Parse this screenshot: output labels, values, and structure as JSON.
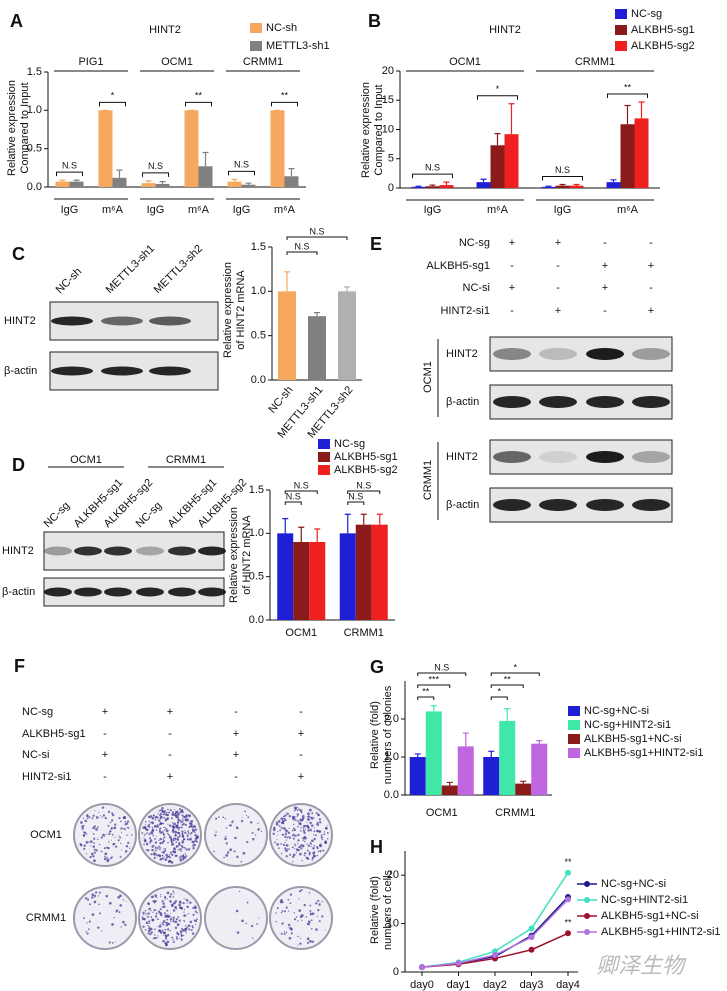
{
  "chart_data": [
    {
      "type": "bar",
      "panel": "A",
      "title": "HINT2",
      "y_label": [
        "Relative expression",
        "Compared to Input"
      ],
      "groups": [
        "PIG1",
        "OCM1",
        "CRMM1"
      ],
      "categories": [
        "IgG",
        "m⁶A",
        "IgG",
        "m⁶A",
        "IgG",
        "m⁶A"
      ],
      "series": [
        {
          "name": "NC-sh",
          "color": "#f5a85e",
          "values": [
            0.07,
            1.0,
            0.05,
            1.0,
            0.07,
            1.0
          ],
          "errors": [
            0.02,
            0,
            0.03,
            0,
            0.03,
            0
          ]
        },
        {
          "name": "METTL3-sh1",
          "color": "#808080",
          "values": [
            0.07,
            0.12,
            0.04,
            0.27,
            0.03,
            0.14
          ],
          "errors": [
            0.02,
            0.1,
            0.03,
            0.18,
            0.02,
            0.1
          ]
        }
      ],
      "ylim": [
        0,
        1.5
      ],
      "yticks": [
        {
          "value": 0,
          "label": "0.0"
        },
        0.5,
        {
          "value": 1,
          "label": "1.0"
        },
        1.5
      ],
      "annotations": [
        "N.S",
        "*",
        "N.S",
        "**",
        "N.S",
        "**"
      ]
    },
    {
      "type": "bar",
      "panel": "B",
      "title": "HINT2",
      "y_label": [
        "Relative expression",
        "Compared to Input"
      ],
      "groups": [
        "OCM1",
        "CRMM1"
      ],
      "categories": [
        "IgG",
        "m⁶A",
        "IgG",
        "m⁶A"
      ],
      "series": [
        {
          "name": "NC-sg",
          "color": "#1f1fd6",
          "values": [
            0.2,
            1.0,
            0.2,
            1.0
          ],
          "errors": [
            0.1,
            0.5,
            0.1,
            0.4
          ]
        },
        {
          "name": "ALKBH5-sg1",
          "color": "#8b1a1a",
          "values": [
            0.3,
            7.3,
            0.4,
            10.9
          ],
          "errors": [
            0.2,
            2.0,
            0.2,
            3.2
          ]
        },
        {
          "name": "ALKBH5-sg2",
          "color": "#ee2020",
          "values": [
            0.5,
            9.2,
            0.4,
            11.9
          ],
          "errors": [
            0.5,
            5.2,
            0.2,
            2.8
          ]
        }
      ],
      "ylim": [
        0,
        20
      ],
      "yticks": [
        0,
        5,
        10,
        15,
        20
      ],
      "annotations": [
        "N.S",
        "*",
        "N.S",
        "**"
      ]
    },
    {
      "type": "bar",
      "y_label": [
        "Relative expression",
        "of HINT2 mRNA"
      ],
      "categories": [
        "NC-sh",
        "METTL3-sh1",
        "METTL3-sh2"
      ],
      "values": [
        1.0,
        0.72,
        1.0
      ],
      "errors": [
        0.22,
        0.04,
        0.05
      ],
      "colors": [
        "#f5a85e",
        "#808080",
        "#b0b0b0"
      ],
      "ylim": [
        0,
        1.5
      ],
      "yticks": [
        {
          "value": 0,
          "label": "0.0"
        },
        0.5,
        {
          "value": 1,
          "label": "1.0"
        },
        1.5
      ],
      "annotations": [
        "N.S",
        "N.S"
      ]
    },
    {
      "type": "bar",
      "y_label": [
        "Relative expression",
        "of HINT2 mRNA"
      ],
      "categories": [
        "OCM1",
        "CRMM1"
      ],
      "series": [
        {
          "name": "NC-sg",
          "color": "#1f1fd6",
          "values": [
            1.0,
            1.0
          ],
          "errors": [
            0.17,
            0.22
          ]
        },
        {
          "name": "ALKBH5-sg1",
          "color": "#8b1a1a",
          "values": [
            0.9,
            1.1
          ],
          "errors": [
            0.17,
            0.12
          ]
        },
        {
          "name": "ALKBH5-sg2",
          "color": "#ee2020",
          "values": [
            0.9,
            1.1
          ],
          "errors": [
            0.15,
            0.12
          ]
        }
      ],
      "ylim": [
        0,
        1.5
      ],
      "yticks": [
        {
          "value": 0,
          "label": "0.0"
        },
        0.5,
        {
          "value": 1,
          "label": "1.0"
        },
        1.5
      ],
      "annotations": [
        "N.S",
        "N.S",
        "N.S",
        "N.S"
      ]
    },
    {
      "type": "bar",
      "panel": "G",
      "y_label": [
        "Relative (fold)",
        "numbers of colonies"
      ],
      "categories": [
        "OCM1",
        "CRMM1"
      ],
      "series": [
        {
          "name": "NC-sg+NC-si",
          "color": "#1f1fd6",
          "values": [
            1.0,
            1.0
          ],
          "errors": [
            0.08,
            0.15
          ]
        },
        {
          "name": "NC-sg+HINT2-si1",
          "color": "#40e8a8",
          "values": [
            2.2,
            1.95
          ],
          "errors": [
            0.15,
            0.32
          ]
        },
        {
          "name": "ALKBH5-sg1+NC-si",
          "color": "#8b1a1a",
          "values": [
            0.25,
            0.3
          ],
          "errors": [
            0.08,
            0.06
          ]
        },
        {
          "name": "ALKBH5-sg1+HINT2-si1",
          "color": "#c066e0",
          "values": [
            1.28,
            1.35
          ],
          "errors": [
            0.35,
            0.08
          ]
        }
      ],
      "ylim": [
        0,
        3
      ],
      "yticks": [
        {
          "value": 0,
          "label": "0.0"
        },
        {
          "value": 1,
          "label": "1.0"
        },
        {
          "value": 2,
          "label": "2.0"
        }
      ],
      "annotations": [
        "**",
        "***",
        "N.S",
        "*",
        "**",
        "*"
      ]
    },
    {
      "type": "line",
      "panel": "H",
      "y_label": [
        "Relative (fold)",
        "numbers of cells"
      ],
      "categories": [
        "day0",
        "day1",
        "day2",
        "day3",
        "day4"
      ],
      "series": [
        {
          "name": "NC-sg+NC-si",
          "color": "#1a1a8c",
          "values": [
            1,
            1.8,
            3.2,
            7.5,
            15.5
          ]
        },
        {
          "name": "NC-sg+HINT2-si1",
          "color": "#40e0c0",
          "values": [
            1,
            2,
            4.3,
            9,
            20.5
          ]
        },
        {
          "name": "ALKBH5-sg1+NC-si",
          "color": "#a01030",
          "values": [
            1,
            1.6,
            2.8,
            4.6,
            8
          ]
        },
        {
          "name": "ALKBH5-sg1+HINT2-si1",
          "color": "#b070e0",
          "values": [
            1,
            1.8,
            3.5,
            7.2,
            15
          ]
        }
      ],
      "ylim": [
        0,
        25
      ],
      "yticks": [
        0,
        10,
        20
      ],
      "annotations": [
        "**",
        "**"
      ]
    }
  ],
  "blot_c": {
    "panel": "C",
    "lanes": [
      "NC-sh",
      "METTL3-sh1",
      "METTL3-sh2"
    ],
    "rows": [
      "HINT2",
      "β-actin"
    ]
  },
  "blot_d": {
    "panel": "D",
    "groups": [
      "OCM1",
      "CRMM1"
    ],
    "lanes": [
      "NC-sg",
      "ALKBH5-sg1",
      "ALKBH5-sg2",
      "NC-sg",
      "ALKBH5-sg1",
      "ALKBH5-sg2"
    ],
    "rows": [
      "HINT2",
      "β-actin"
    ]
  },
  "blot_e": {
    "panel": "E",
    "conditions": [
      {
        "name": "NC-sg",
        "signs": [
          "+",
          "+",
          "-",
          "-"
        ]
      },
      {
        "name": "ALKBH5-sg1",
        "signs": [
          "-",
          "-",
          "+",
          "+"
        ]
      },
      {
        "name": "NC-si",
        "signs": [
          "+",
          "-",
          "+",
          "-"
        ]
      },
      {
        "name": "HINT2-si1",
        "signs": [
          "-",
          "+",
          "-",
          "+"
        ]
      }
    ],
    "blots": [
      {
        "cell": "OCM1",
        "rows": [
          "HINT2",
          "β-actin"
        ]
      },
      {
        "cell": "CRMM1",
        "rows": [
          "HINT2",
          "β-actin"
        ]
      }
    ]
  },
  "colony_f": {
    "panel": "F",
    "conditions": [
      {
        "name": "NC-sg",
        "signs": [
          "+",
          "+",
          "-",
          "-"
        ]
      },
      {
        "name": "ALKBH5-sg1",
        "signs": [
          "-",
          "-",
          "+",
          "+"
        ]
      },
      {
        "name": "NC-si",
        "signs": [
          "+",
          "-",
          "+",
          "-"
        ]
      },
      {
        "name": "HINT2-si1",
        "signs": [
          "-",
          "+",
          "-",
          "+"
        ]
      }
    ],
    "rows": [
      "OCM1",
      "CRMM1"
    ]
  },
  "watermark": "卿泽生物"
}
